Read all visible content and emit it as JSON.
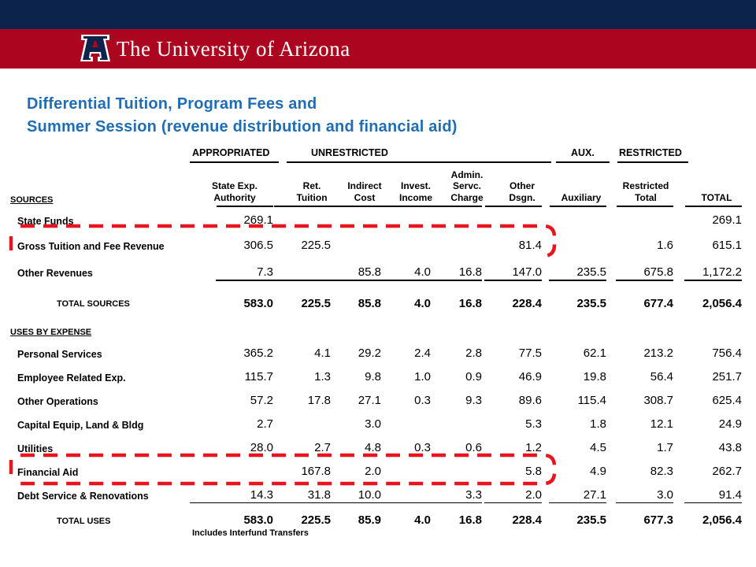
{
  "brand": {
    "name": "The University of Arizona",
    "colors": {
      "navy": "#0c234b",
      "red": "#ab0520",
      "title_blue": "#1f6eb5",
      "highlight": "#e8141e"
    }
  },
  "title": {
    "line1": "Differential Tuition, Program Fees and",
    "line2": "Summer Session (revenue distribution and financial aid)"
  },
  "groups": [
    "APPROPRIATED",
    "UNRESTRICTED",
    "AUX.",
    "RESTRICTED"
  ],
  "columns": [
    [
      "State Exp.",
      "Authority"
    ],
    [
      "Ret.",
      "Tuition"
    ],
    [
      "Indirect",
      "Cost"
    ],
    [
      "Invest.",
      "Income"
    ],
    [
      "Admin.",
      "Servc.",
      "Charge"
    ],
    [
      "Other",
      "Dsgn."
    ],
    [
      "Auxiliary"
    ],
    [
      "Restricted",
      "Total"
    ],
    [
      "TOTAL"
    ]
  ],
  "sources": {
    "heading": "SOURCES",
    "rows": [
      {
        "label": "State Funds",
        "values": [
          "269.1",
          "",
          "",
          "",
          "",
          "",
          "",
          "",
          "269.1"
        ]
      },
      {
        "label": "Gross Tuition and Fee Revenue",
        "values": [
          "306.5",
          "225.5",
          "",
          "",
          "",
          "81.4",
          "",
          "1.6",
          "615.1"
        ]
      },
      {
        "label": "Other Revenues",
        "values": [
          "7.3",
          "",
          "85.8",
          "4.0",
          "16.8",
          "147.0",
          "235.5",
          "675.8",
          "1,172.2"
        ]
      }
    ],
    "total": {
      "label": "TOTAL SOURCES",
      "values": [
        "583.0",
        "225.5",
        "85.8",
        "4.0",
        "16.8",
        "228.4",
        "235.5",
        "677.4",
        "2,056.4"
      ]
    }
  },
  "uses": {
    "heading": "USES BY EXPENSE",
    "rows": [
      {
        "label": "Personal Services",
        "values": [
          "365.2",
          "4.1",
          "29.2",
          "2.4",
          "2.8",
          "77.5",
          "62.1",
          "213.2",
          "756.4"
        ]
      },
      {
        "label": "Employee Related Exp.",
        "values": [
          "115.7",
          "1.3",
          "9.8",
          "1.0",
          "0.9",
          "46.9",
          "19.8",
          "56.4",
          "251.7"
        ]
      },
      {
        "label": "Other Operations",
        "values": [
          "57.2",
          "17.8",
          "27.1",
          "0.3",
          "9.3",
          "89.6",
          "115.4",
          "308.7",
          "625.4"
        ]
      },
      {
        "label": "Capital Equip, Land & Bldg",
        "values": [
          "2.7",
          "",
          "3.0",
          "",
          "",
          "5.3",
          "1.8",
          "12.1",
          "24.9"
        ]
      },
      {
        "label": "Utilities",
        "values": [
          "28.0",
          "2.7",
          "4.8",
          "0.3",
          "0.6",
          "1.2",
          "4.5",
          "1.7",
          "43.8"
        ]
      },
      {
        "label": "Financial Aid",
        "values": [
          "",
          "167.8",
          "2.0",
          "",
          "",
          "5.8",
          "4.9",
          "82.3",
          "262.7"
        ]
      },
      {
        "label": "Debt Service & Renovations",
        "values": [
          "14.3",
          "31.8",
          "10.0",
          "",
          "3.3",
          "2.0",
          "27.1",
          "3.0",
          "91.4"
        ]
      }
    ],
    "total": {
      "label": "TOTAL USES",
      "values": [
        "583.0",
        "225.5",
        "85.9",
        "4.0",
        "16.8",
        "228.4",
        "235.5",
        "677.3",
        "2,056.4"
      ]
    }
  },
  "note": "Includes Interfund Transfers"
}
